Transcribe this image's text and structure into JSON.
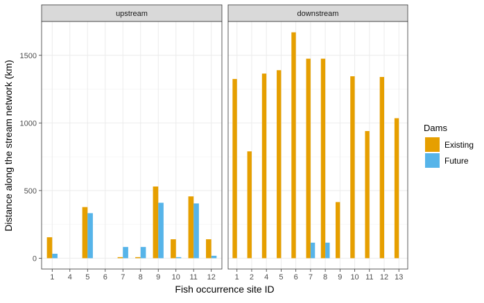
{
  "chart_data": {
    "type": "bar",
    "xlabel": "Fish occurrence site ID",
    "ylabel": "Distance along the stream network (km)",
    "ylim": [
      -80,
      1750
    ],
    "yticks": [
      0,
      500,
      1000,
      1500
    ],
    "grid": true,
    "legend": {
      "title": "Dams",
      "placement": "right",
      "entries": [
        {
          "name": "Existing",
          "color": "#E69F00"
        },
        {
          "name": "Future",
          "color": "#56B4E9"
        }
      ]
    },
    "panels": [
      {
        "strip": "upstream",
        "categories": [
          "1",
          "4",
          "5",
          "6",
          "7",
          "8",
          "9",
          "10",
          "11",
          "12"
        ],
        "series": [
          {
            "name": "Existing",
            "values": [
              155,
              0,
              378,
              0,
              8,
              8,
              530,
              140,
              457,
              140
            ]
          },
          {
            "name": "Future",
            "values": [
              33,
              0,
              333,
              0,
              83,
              83,
              410,
              8,
              405,
              18
            ]
          }
        ]
      },
      {
        "strip": "downstream",
        "categories": [
          "1",
          "2",
          "4",
          "5",
          "6",
          "7",
          "8",
          "9",
          "10",
          "11",
          "12",
          "13"
        ],
        "series": [
          {
            "name": "Existing",
            "values": [
              1325,
              790,
              1365,
              1390,
              1670,
              1475,
              1475,
              415,
              1345,
              940,
              1340,
              1035
            ]
          },
          {
            "name": "Future",
            "values": [
              0,
              0,
              0,
              0,
              0,
              115,
              115,
              0,
              0,
              0,
              0,
              0
            ]
          }
        ]
      }
    ]
  }
}
